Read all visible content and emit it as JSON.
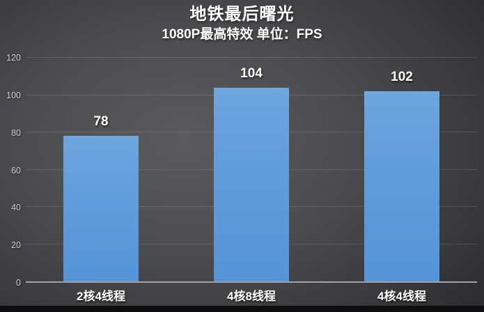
{
  "title": "地铁最后曙光",
  "subtitle": "1080P最高特效 单位：FPS",
  "chart_data": {
    "type": "bar",
    "categories": [
      "2核4线程",
      "4核8线程",
      "4核4线程"
    ],
    "values": [
      78,
      104,
      102
    ],
    "title": "地铁最后曙光",
    "subtitle": "1080P最高特效 单位：FPS",
    "xlabel": "",
    "ylabel": "",
    "ylim": [
      0,
      120
    ],
    "yticks": [
      0,
      20,
      40,
      60,
      80,
      100,
      120
    ],
    "grid": true,
    "legend": false,
    "bar_color_top": "#6ea6de",
    "bar_color_bottom": "#5594d7",
    "background_center": "#5a5a5c",
    "background_edge": "#262628",
    "axis_line_color": "#a2a2a4",
    "gridline_color": "rgba(255,255,255,0.13)",
    "tick_label_color": "#cccccc",
    "label_color": "#ffffff"
  }
}
